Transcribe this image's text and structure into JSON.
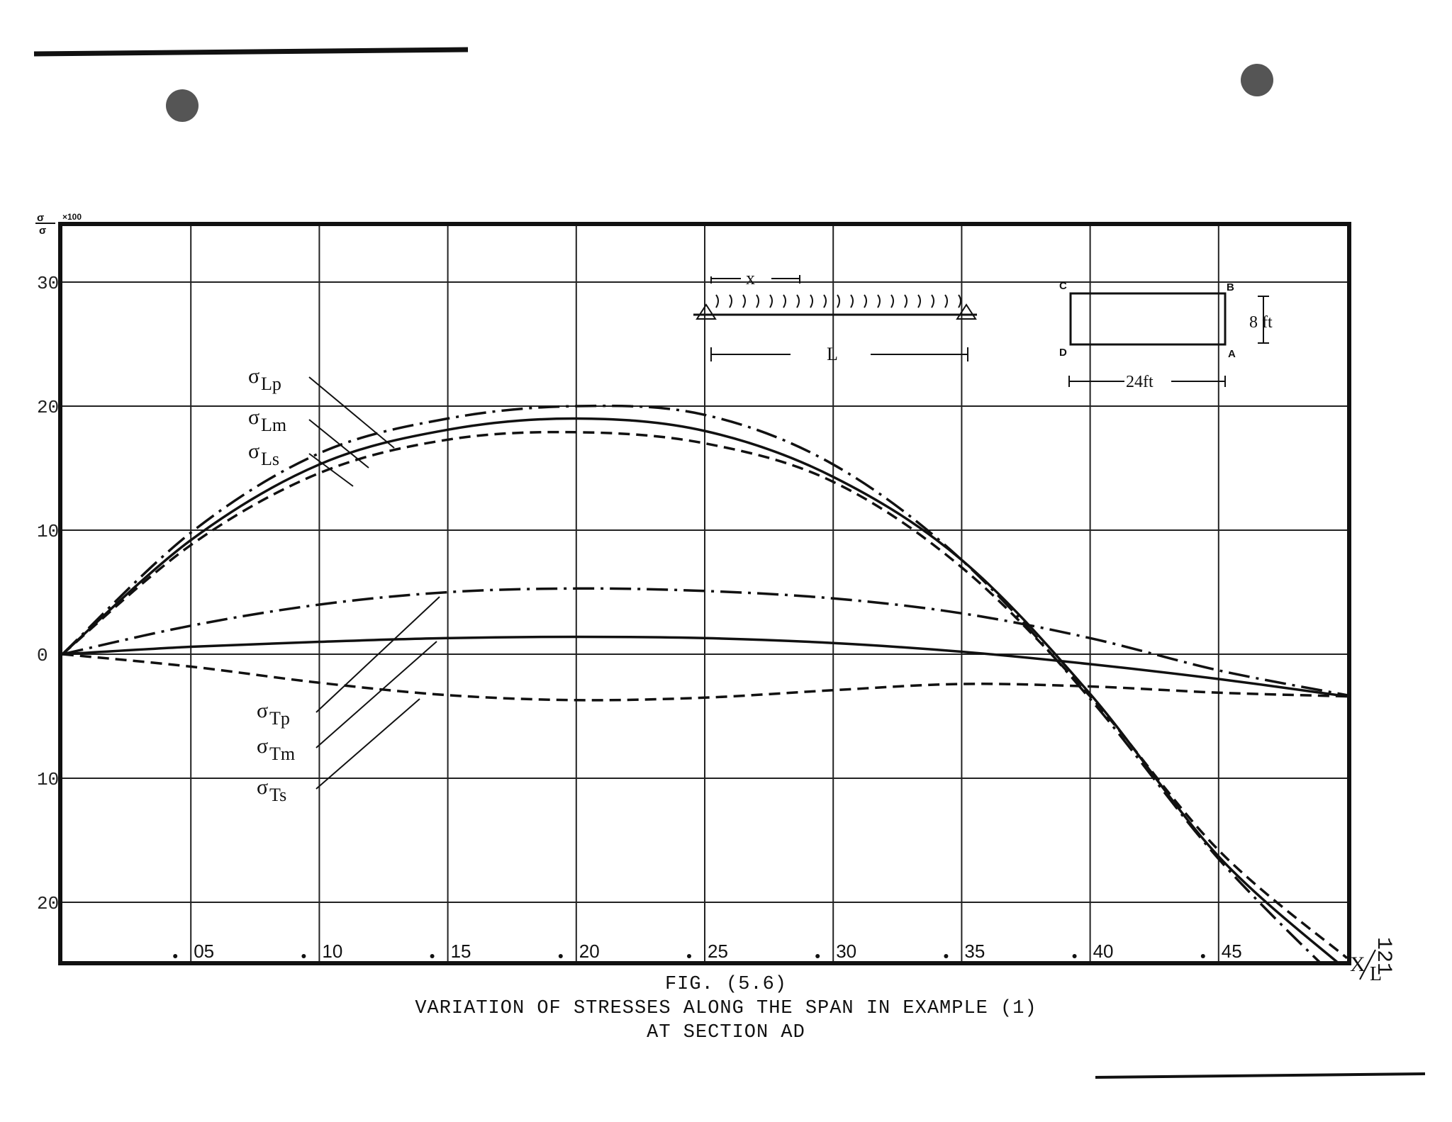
{
  "figure": {
    "caption_line1": "FIG. (5.6)",
    "caption_line2": "VARIATION OF STRESSES ALONG THE SPAN IN EXAMPLE (1)",
    "caption_line3": "AT SECTION AD",
    "page_number": "121"
  },
  "chart_data": {
    "type": "line",
    "ylabel": "σ/σ₀ ×100",
    "xlabel": "X/L",
    "ylim": [
      -25,
      35
    ],
    "xlim": [
      0,
      0.5
    ],
    "grid": true,
    "y_ticks": [
      {
        "value": 30,
        "label": "30"
      },
      {
        "value": 20,
        "label": "20"
      },
      {
        "value": 10,
        "label": "10"
      },
      {
        "value": 0,
        "label": "0"
      },
      {
        "value": -10,
        "label": "10"
      },
      {
        "value": -20,
        "label": "20"
      }
    ],
    "x_ticks": [
      {
        "value": 0.05,
        "label": ".05"
      },
      {
        "value": 0.1,
        "label": ".10"
      },
      {
        "value": 0.15,
        "label": ".15"
      },
      {
        "value": 0.2,
        "label": ".20"
      },
      {
        "value": 0.25,
        "label": ".25"
      },
      {
        "value": 0.3,
        "label": ".30"
      },
      {
        "value": 0.35,
        "label": ".35"
      },
      {
        "value": 0.4,
        "label": ".40"
      },
      {
        "value": 0.45,
        "label": ".45"
      }
    ],
    "series": [
      {
        "name": "σLp",
        "style": "dashdot",
        "x": [
          0,
          0.05,
          0.1,
          0.15,
          0.2,
          0.25,
          0.3,
          0.35,
          0.4,
          0.45,
          0.5
        ],
        "y": [
          0,
          9.8,
          16.2,
          19.0,
          20.0,
          19.3,
          15.3,
          7.6,
          -3.6,
          -16.5,
          -27.0
        ]
      },
      {
        "name": "σLm",
        "style": "solid",
        "x": [
          0,
          0.05,
          0.1,
          0.15,
          0.2,
          0.25,
          0.3,
          0.35,
          0.4,
          0.45,
          0.5
        ],
        "y": [
          0,
          9.2,
          15.3,
          18.1,
          19.0,
          18.0,
          14.3,
          7.6,
          -3.2,
          -16.3,
          -25.5
        ]
      },
      {
        "name": "σLs",
        "style": "dashed",
        "x": [
          0,
          0.05,
          0.1,
          0.15,
          0.2,
          0.25,
          0.3,
          0.35,
          0.4,
          0.45,
          0.5
        ],
        "y": [
          0,
          8.8,
          14.6,
          17.3,
          17.9,
          17.0,
          13.9,
          7.0,
          -3.4,
          -15.8,
          -24.5
        ]
      },
      {
        "name": "σTp",
        "style": "dashdot",
        "x": [
          0,
          0.05,
          0.1,
          0.15,
          0.2,
          0.25,
          0.3,
          0.35,
          0.4,
          0.45,
          0.5
        ],
        "y": [
          0,
          2.3,
          4.0,
          5.0,
          5.3,
          5.1,
          4.5,
          3.3,
          1.3,
          -1.3,
          -3.3
        ]
      },
      {
        "name": "σTm",
        "style": "solid",
        "x": [
          0,
          0.05,
          0.1,
          0.15,
          0.2,
          0.25,
          0.3,
          0.35,
          0.4,
          0.45,
          0.5
        ],
        "y": [
          0,
          0.6,
          1.0,
          1.3,
          1.4,
          1.3,
          0.9,
          0.2,
          -0.8,
          -2.0,
          -3.4
        ]
      },
      {
        "name": "σTs",
        "style": "dashed",
        "x": [
          0,
          0.05,
          0.1,
          0.15,
          0.2,
          0.25,
          0.3,
          0.35,
          0.4,
          0.45,
          0.5
        ],
        "y": [
          0,
          -1.0,
          -2.3,
          -3.3,
          -3.7,
          -3.5,
          -2.9,
          -2.4,
          -2.6,
          -3.1,
          -3.4
        ]
      }
    ],
    "curve_labels": [
      {
        "series": "σLp",
        "sigma": "σ",
        "sub": "Lp"
      },
      {
        "series": "σLm",
        "sigma": "σ",
        "sub": "Lm"
      },
      {
        "series": "σLs",
        "sigma": "σ",
        "sub": "Ls"
      },
      {
        "series": "σTp",
        "sigma": "σ",
        "sub": "Tp"
      },
      {
        "series": "σTm",
        "sigma": "σ",
        "sub": "Tm"
      },
      {
        "series": "σTs",
        "sigma": "σ",
        "sub": "Ts"
      }
    ]
  },
  "inset": {
    "x_label": "x",
    "span_label": "L",
    "corner_c": "C",
    "corner_b": "B",
    "corner_d": "D",
    "corner_a": "A",
    "height_label": "8 ft",
    "width_label": "24ft"
  }
}
